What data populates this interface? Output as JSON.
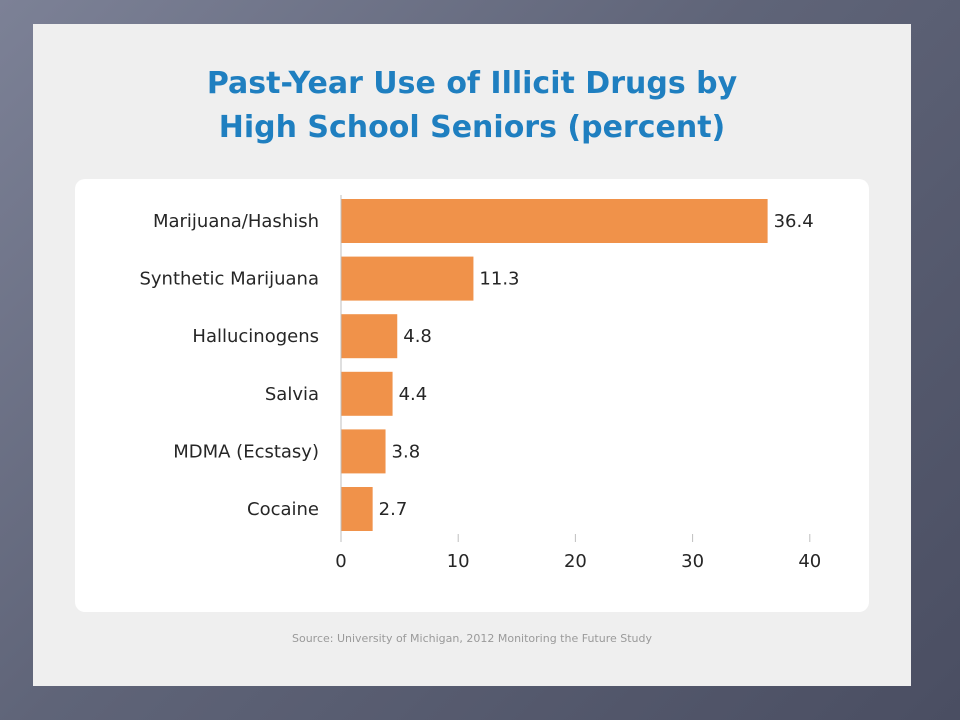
{
  "slide": {
    "title_line1": "Past-Year Use of Illicit Drugs by",
    "title_line2": "High School Seniors (percent)",
    "source": "Source: University of Michigan, 2012 Monitoring the Future Study"
  },
  "chart_data": {
    "type": "bar",
    "orientation": "horizontal",
    "title": "Past-Year Use of Illicit Drugs by High School Seniors (percent)",
    "categories": [
      "Marijuana/Hashish",
      "Synthetic Marijuana",
      "Hallucinogens",
      "Salvia",
      "MDMA (Ecstasy)",
      "Cocaine"
    ],
    "values": [
      36.4,
      11.3,
      4.8,
      4.4,
      3.8,
      2.7
    ],
    "value_labels": [
      "36.4",
      "11.3",
      "4.8",
      "4.4",
      "3.8",
      "2.7"
    ],
    "xlim": [
      0,
      40
    ],
    "xticks": [
      0,
      10,
      20,
      30,
      40
    ],
    "xtick_labels": [
      "0",
      "10",
      "20",
      "30",
      "40"
    ],
    "grid": false,
    "legend": "none",
    "bar_color": "#f0924a",
    "title_color": "#1f7fc0"
  }
}
